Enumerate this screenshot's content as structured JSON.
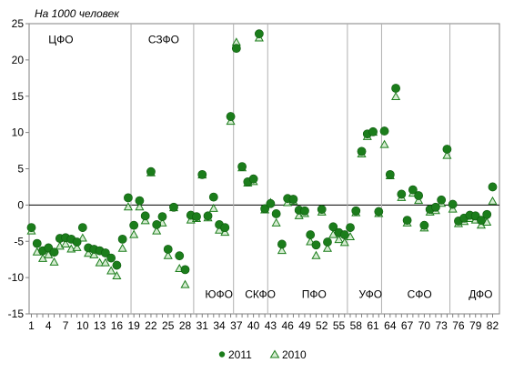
{
  "chart_data": {
    "type": "scatter",
    "unit_label": "На 1000 человек",
    "ylim": [
      -15,
      25
    ],
    "xlim": [
      1,
      83
    ],
    "yticks": [
      "25",
      "20",
      "15",
      "10",
      "5",
      "0",
      "-5",
      "-10",
      "-15"
    ],
    "xticks": [
      "1",
      "4",
      "7",
      "10",
      "13",
      "16",
      "19",
      "22",
      "25",
      "28",
      "31",
      "34",
      "37",
      "40",
      "43",
      "46",
      "49",
      "52",
      "55",
      "58",
      "61",
      "64",
      "67",
      "70",
      "73",
      "76",
      "79",
      "82"
    ],
    "regions": [
      {
        "name": "ЦФО",
        "x": 4,
        "y": 22.8
      },
      {
        "name": "СЗФО",
        "x": 21.5,
        "y": 22.8
      },
      {
        "name": "ЮФО",
        "x": 31.5,
        "y": -12.3
      },
      {
        "name": "СКФО",
        "x": 38.5,
        "y": -12.3
      },
      {
        "name": "ПФО",
        "x": 48.5,
        "y": -12.3
      },
      {
        "name": "УФО",
        "x": 58.5,
        "y": -12.3
      },
      {
        "name": "СФО",
        "x": 67,
        "y": -12.3
      },
      {
        "name": "ДФО",
        "x": 77.8,
        "y": -12.3
      }
    ],
    "separators": [
      18.5,
      29.5,
      36.5,
      42.5,
      56.5,
      62.5,
      74.5
    ],
    "series": [
      {
        "name": "2011",
        "marker": "circle",
        "color": "#1b7d1b",
        "points": [
          [
            1,
            -3.1
          ],
          [
            2,
            -5.3
          ],
          [
            3,
            -6.3
          ],
          [
            4,
            -5.9
          ],
          [
            5,
            -6.5
          ],
          [
            6,
            -4.6
          ],
          [
            7,
            -4.5
          ],
          [
            8,
            -4.7
          ],
          [
            9,
            -5.1
          ],
          [
            10,
            -3.1
          ],
          [
            11,
            -5.9
          ],
          [
            12,
            -6.1
          ],
          [
            13,
            -6.3
          ],
          [
            14,
            -6.6
          ],
          [
            15,
            -7.3
          ],
          [
            16,
            -8.3
          ],
          [
            17,
            -4.7
          ],
          [
            18,
            1.0
          ],
          [
            19,
            -2.8
          ],
          [
            20,
            0.6
          ],
          [
            21,
            -1.5
          ],
          [
            22,
            4.6
          ],
          [
            23,
            -2.7
          ],
          [
            24,
            -1.6
          ],
          [
            25,
            -6.1
          ],
          [
            26,
            -0.3
          ],
          [
            27,
            -7.0
          ],
          [
            28,
            -8.9
          ],
          [
            29,
            -1.4
          ],
          [
            30,
            -1.6
          ],
          [
            31,
            4.2
          ],
          [
            32,
            -1.5
          ],
          [
            33,
            1.1
          ],
          [
            34,
            -2.7
          ],
          [
            35,
            -3.1
          ],
          [
            36,
            12.2
          ],
          [
            37,
            21.6
          ],
          [
            38,
            5.3
          ],
          [
            39,
            3.2
          ],
          [
            40,
            3.6
          ],
          [
            41,
            23.6
          ],
          [
            42,
            -0.5
          ],
          [
            43,
            0.2
          ],
          [
            44,
            -1.2
          ],
          [
            45,
            -5.4
          ],
          [
            46,
            0.9
          ],
          [
            47,
            0.8
          ],
          [
            48,
            -0.7
          ],
          [
            49,
            -0.8
          ],
          [
            50,
            -4.1
          ],
          [
            51,
            -5.5
          ],
          [
            52,
            -0.6
          ],
          [
            53,
            -5.1
          ],
          [
            54,
            -3.0
          ],
          [
            55,
            -3.8
          ],
          [
            56,
            -4.1
          ],
          [
            57,
            -3.1
          ],
          [
            58,
            -0.8
          ],
          [
            59,
            7.4
          ],
          [
            60,
            9.8
          ],
          [
            61,
            10.1
          ],
          [
            62,
            -0.9
          ],
          [
            63,
            10.2
          ],
          [
            64,
            4.2
          ],
          [
            65,
            16.1
          ],
          [
            66,
            1.5
          ],
          [
            67,
            -2.1
          ],
          [
            68,
            2.1
          ],
          [
            69,
            1.3
          ],
          [
            70,
            -2.8
          ],
          [
            71,
            -0.6
          ],
          [
            72,
            -0.3
          ],
          [
            73,
            0.7
          ],
          [
            74,
            7.7
          ],
          [
            75,
            0.1
          ],
          [
            76,
            -2.2
          ],
          [
            77,
            -1.8
          ],
          [
            78,
            -1.4
          ],
          [
            79,
            -1.5
          ],
          [
            80,
            -2.1
          ],
          [
            81,
            -1.3
          ],
          [
            82,
            2.5
          ]
        ]
      },
      {
        "name": "2010",
        "marker": "triangle",
        "color": "#1b7d1b",
        "points": [
          [
            1,
            -3.6
          ],
          [
            2,
            -6.5
          ],
          [
            3,
            -7.4
          ],
          [
            4,
            -6.9
          ],
          [
            5,
            -7.9
          ],
          [
            6,
            -5.7
          ],
          [
            7,
            -5.4
          ],
          [
            8,
            -6.1
          ],
          [
            9,
            -5.9
          ],
          [
            10,
            -4.6
          ],
          [
            11,
            -6.7
          ],
          [
            12,
            -6.9
          ],
          [
            13,
            -8.0
          ],
          [
            14,
            -8.0
          ],
          [
            15,
            -9.1
          ],
          [
            16,
            -9.8
          ],
          [
            17,
            -6.0
          ],
          [
            18,
            -0.3
          ],
          [
            19,
            -4.1
          ],
          [
            20,
            -0.3
          ],
          [
            21,
            -2.2
          ],
          [
            22,
            4.4
          ],
          [
            23,
            -3.6
          ],
          [
            24,
            -2.5
          ],
          [
            25,
            -7.0
          ],
          [
            26,
            -0.4
          ],
          [
            27,
            -8.8
          ],
          [
            28,
            -11.0
          ],
          [
            29,
            -2.1
          ],
          [
            30,
            -1.9
          ],
          [
            31,
            4.1
          ],
          [
            32,
            -1.8
          ],
          [
            33,
            -0.5
          ],
          [
            34,
            -3.5
          ],
          [
            35,
            -3.8
          ],
          [
            36,
            11.5
          ],
          [
            37,
            22.4
          ],
          [
            38,
            5.1
          ],
          [
            39,
            3.0
          ],
          [
            40,
            3.2
          ],
          [
            41,
            23.0
          ],
          [
            42,
            -0.7
          ],
          [
            43,
            0.3
          ],
          [
            44,
            -2.5
          ],
          [
            45,
            -6.3
          ],
          [
            46,
            0.3
          ],
          [
            47,
            0.5
          ],
          [
            48,
            -1.5
          ],
          [
            49,
            -1.2
          ],
          [
            50,
            -5.1
          ],
          [
            51,
            -7.0
          ],
          [
            52,
            -1.0
          ],
          [
            53,
            -6.0
          ],
          [
            54,
            -4.1
          ],
          [
            55,
            -4.8
          ],
          [
            56,
            -5.2
          ],
          [
            57,
            -4.4
          ],
          [
            58,
            -1.1
          ],
          [
            59,
            7.0
          ],
          [
            60,
            9.4
          ],
          [
            61,
            10.0
          ],
          [
            62,
            -1.2
          ],
          [
            63,
            8.3
          ],
          [
            64,
            4.0
          ],
          [
            65,
            14.9
          ],
          [
            66,
            1.0
          ],
          [
            67,
            -2.5
          ],
          [
            68,
            1.6
          ],
          [
            69,
            0.6
          ],
          [
            70,
            -3.2
          ],
          [
            71,
            -1.0
          ],
          [
            72,
            -0.8
          ],
          [
            73,
            0.2
          ],
          [
            74,
            6.8
          ],
          [
            75,
            -0.6
          ],
          [
            76,
            -2.6
          ],
          [
            77,
            -2.3
          ],
          [
            78,
            -1.9
          ],
          [
            79,
            -2.1
          ],
          [
            80,
            -2.8
          ],
          [
            81,
            -2.4
          ],
          [
            82,
            0.5
          ]
        ]
      }
    ],
    "legend": {
      "placement": "bottom-center"
    },
    "grid": false
  }
}
